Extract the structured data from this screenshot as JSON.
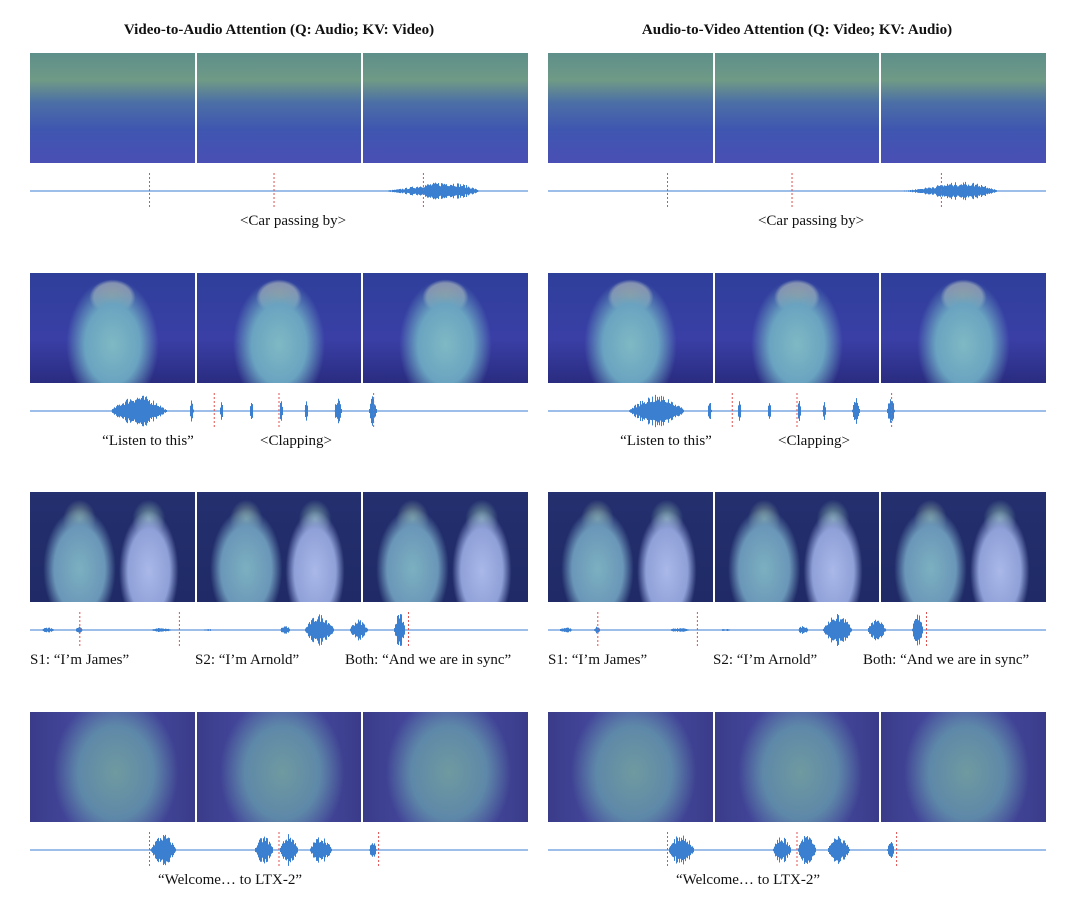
{
  "figure": {
    "columns": [
      {
        "title": "Video-to-Audio Attention (Q: Audio; KV: Video)",
        "rows": [
          {
            "captions": [
              "<Car passing by>"
            ]
          },
          {
            "captions": [
              "“Listen to this”",
              "<Clapping>"
            ]
          },
          {
            "captions": [
              "S1: “I’m James”",
              "S2: “I’m Arnold”",
              "Both: “And we are in sync”"
            ]
          },
          {
            "captions": [
              "“Welcome… to LTX-2”"
            ]
          }
        ]
      },
      {
        "title": "Audio-to-Video Attention (Q: Video; KV: Audio)",
        "rows": [
          {
            "captions": [
              "<Car passing by>"
            ]
          },
          {
            "captions": [
              "“Listen to this”",
              "<Clapping>"
            ]
          },
          {
            "captions": [
              "S1: “I’m James”",
              "S2: “I’m Arnold”",
              "Both: “And we are in sync”"
            ]
          },
          {
            "captions": [
              "“Welcome… to LTX-2”"
            ]
          }
        ]
      }
    ],
    "colors": {
      "waveform": "#3a7fd0",
      "frame_marker": "#e05050",
      "heatmap_low": "#3a3fb0",
      "heatmap_high": "#c0301e"
    }
  }
}
